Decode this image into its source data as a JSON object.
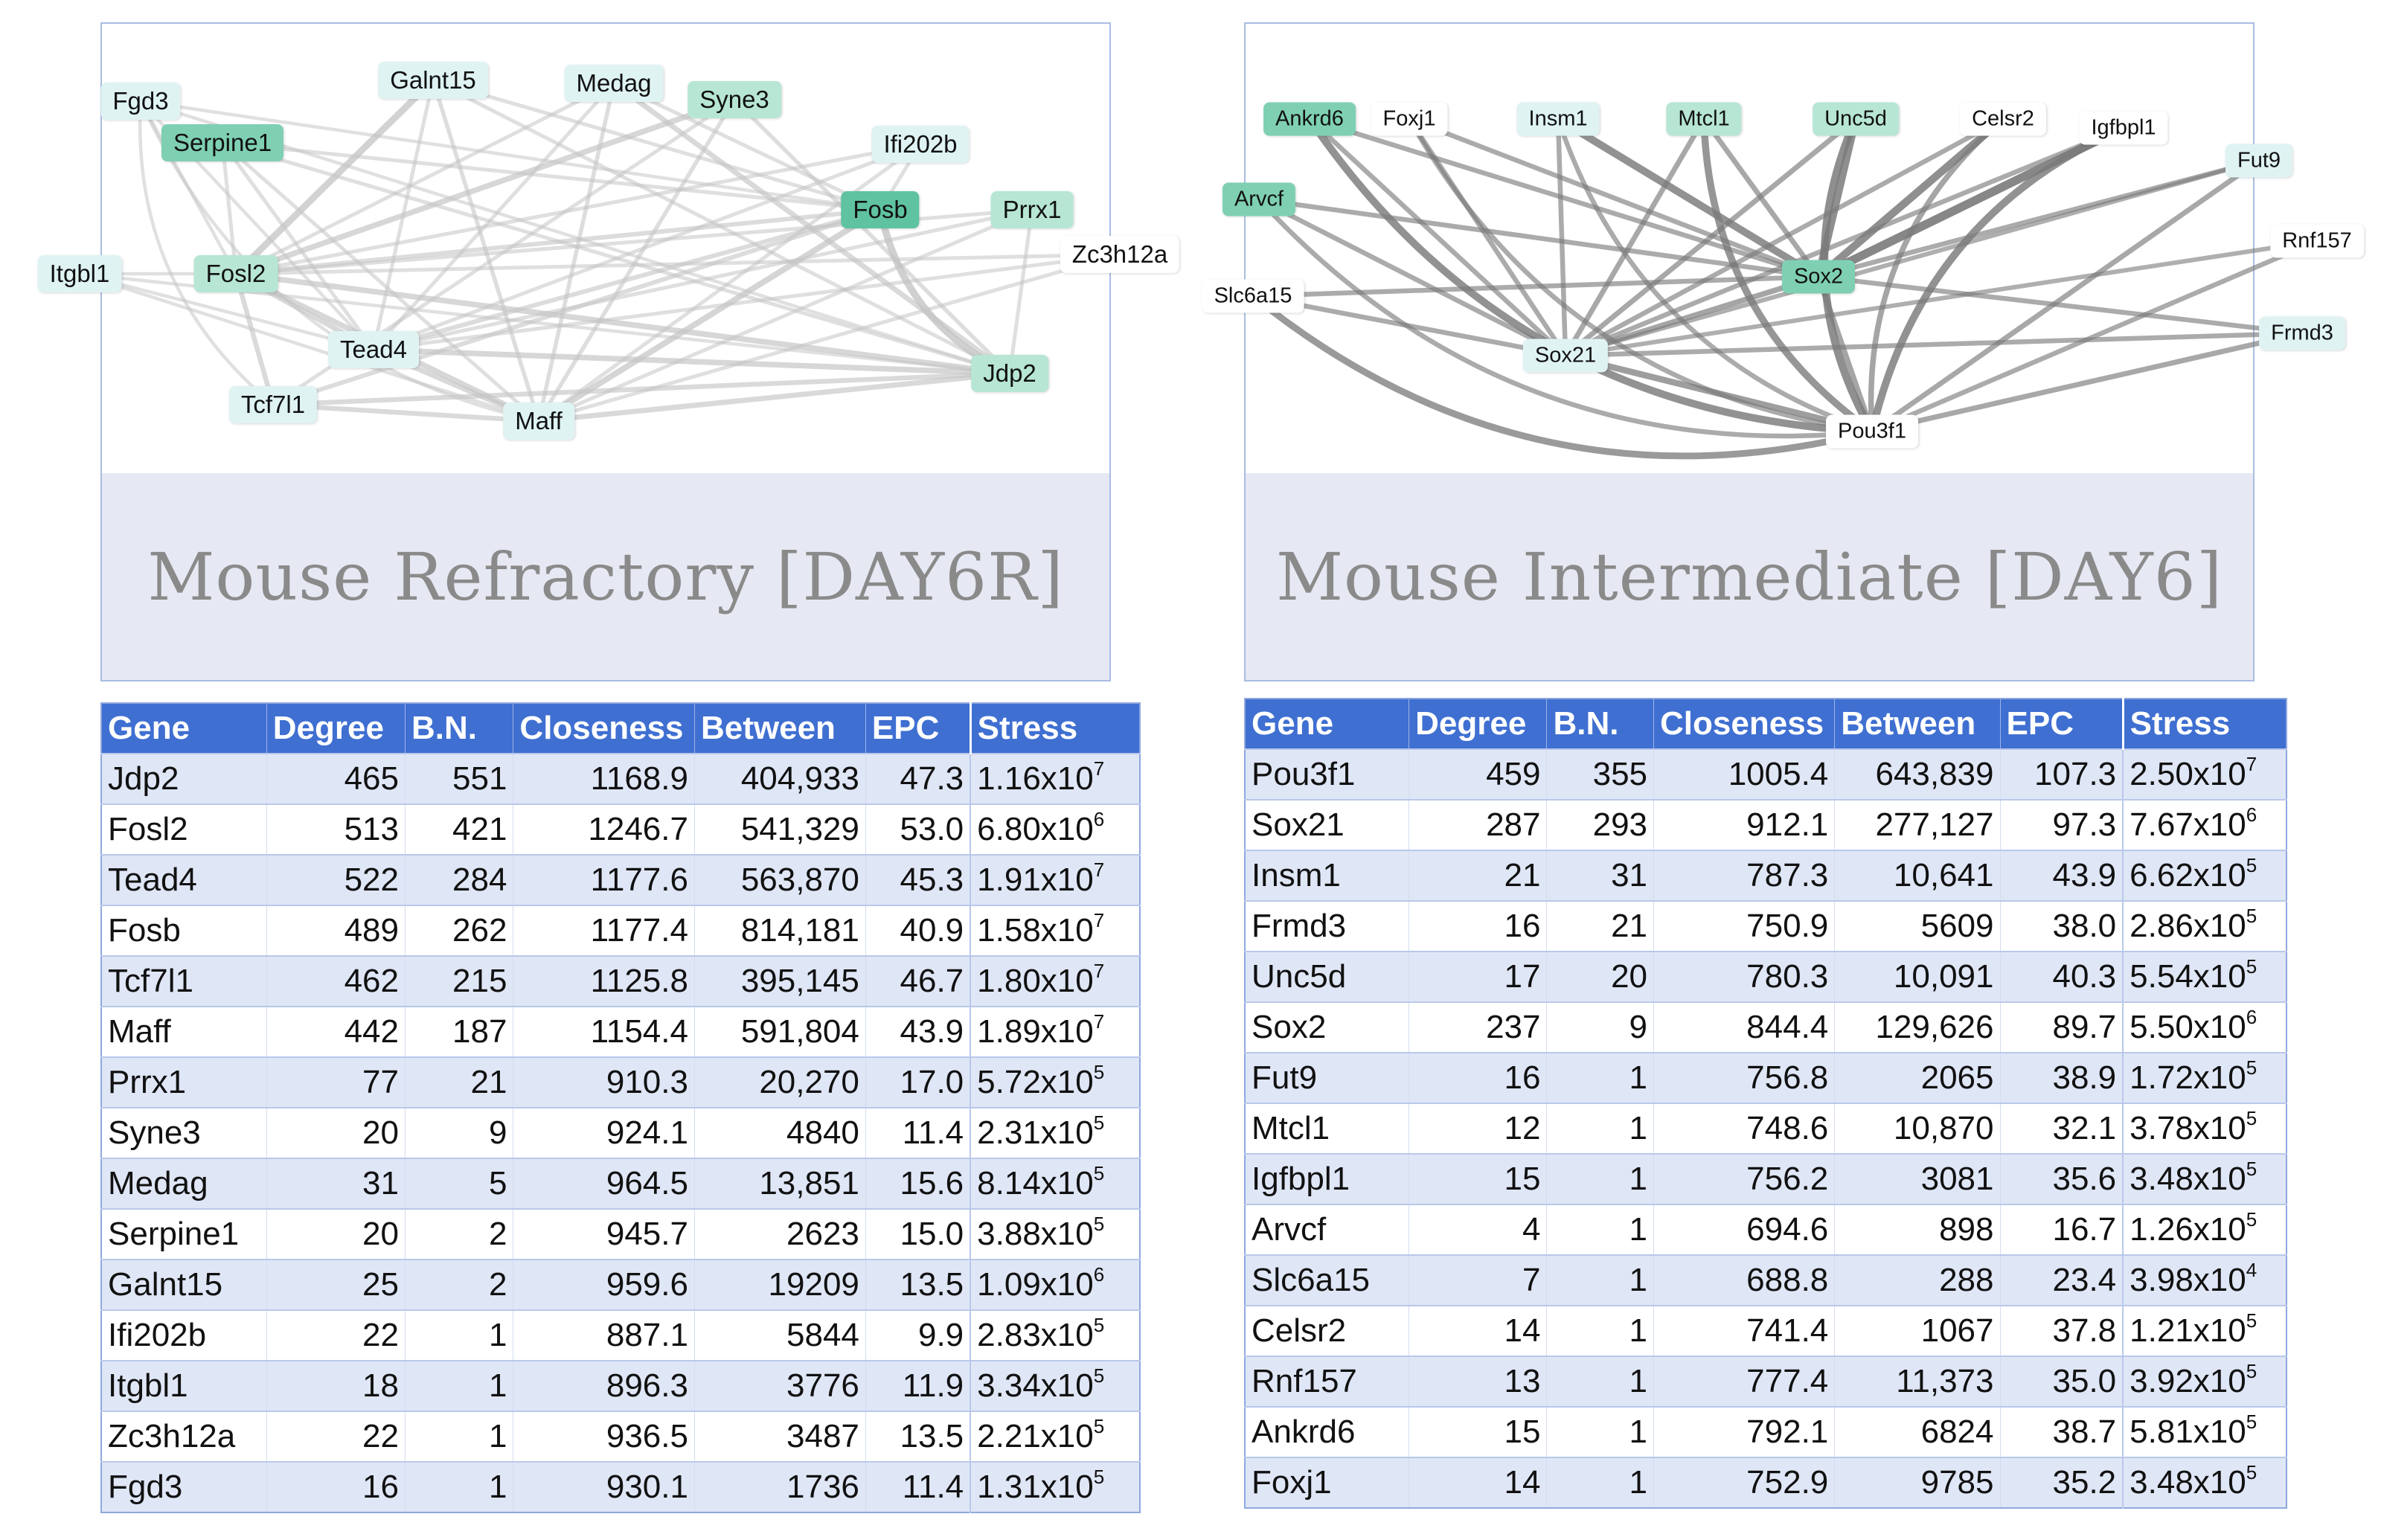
{
  "panels": [
    {
      "id": "left",
      "caption": "Mouse Refractory [DAY6R]",
      "nodes": [
        {
          "id": "Fgd3",
          "label": "Fgd3",
          "shade": "light"
        },
        {
          "id": "Serpine1",
          "label": "Serpine1",
          "shade": "mid"
        },
        {
          "id": "Galnt15",
          "label": "Galnt15",
          "shade": "light"
        },
        {
          "id": "Medag",
          "label": "Medag",
          "shade": "light"
        },
        {
          "id": "Syne3",
          "label": "Syne3",
          "shade": "pale"
        },
        {
          "id": "Ifi202b",
          "label": "Ifi202b",
          "shade": "light"
        },
        {
          "id": "Fosb",
          "label": "Fosb",
          "shade": "dark"
        },
        {
          "id": "Prrx1",
          "label": "Prrx1",
          "shade": "pale"
        },
        {
          "id": "Zc3h12a",
          "label": "Zc3h12a",
          "shade": "none"
        },
        {
          "id": "Itgbl1",
          "label": "Itgbl1",
          "shade": "light"
        },
        {
          "id": "Fosl2",
          "label": "Fosl2",
          "shade": "pale"
        },
        {
          "id": "Tead4",
          "label": "Tead4",
          "shade": "light"
        },
        {
          "id": "Jdp2",
          "label": "Jdp2",
          "shade": "pale"
        },
        {
          "id": "Tcf7l1",
          "label": "Tcf7l1",
          "shade": "light"
        },
        {
          "id": "Maff",
          "label": "Maff",
          "shade": "light"
        }
      ],
      "edges": [
        [
          "Fgd3",
          "Tcf7l1",
          0.3,
          "curve"
        ],
        [
          "Fgd3",
          "Maff",
          0.3,
          "curve"
        ],
        [
          "Fgd3",
          "Fosl2",
          0.3
        ],
        [
          "Fgd3",
          "Tead4",
          0.3
        ],
        [
          "Fgd3",
          "Fosb",
          0.3
        ],
        [
          "Fgd3",
          "Jdp2",
          0.3
        ],
        [
          "Serpine1",
          "Fosl2",
          0.35
        ],
        [
          "Serpine1",
          "Tead4",
          0.35
        ],
        [
          "Serpine1",
          "Maff",
          0.35
        ],
        [
          "Serpine1",
          "Jdp2",
          0.35
        ],
        [
          "Serpine1",
          "Fosb",
          0.35
        ],
        [
          "Galnt15",
          "Fosl2",
          0.75
        ],
        [
          "Galnt15",
          "Tead4",
          0.35
        ],
        [
          "Galnt15",
          "Maff",
          0.4
        ],
        [
          "Galnt15",
          "Jdp2",
          0.35
        ],
        [
          "Galnt15",
          "Fosb",
          0.35
        ],
        [
          "Medag",
          "Fosl2",
          0.35
        ],
        [
          "Medag",
          "Maff",
          0.4
        ],
        [
          "Medag",
          "Jdp2",
          0.55
        ],
        [
          "Medag",
          "Fosb",
          0.35
        ],
        [
          "Medag",
          "Tead4",
          0.35
        ],
        [
          "Syne3",
          "Fosl2",
          0.6
        ],
        [
          "Syne3",
          "Maff",
          0.4
        ],
        [
          "Syne3",
          "Jdp2",
          0.4
        ],
        [
          "Syne3",
          "Tcf7l1",
          0.35
        ],
        [
          "Ifi202b",
          "Fosb",
          0.35
        ],
        [
          "Ifi202b",
          "Fosl2",
          0.35
        ],
        [
          "Ifi202b",
          "Maff",
          0.35
        ],
        [
          "Ifi202b",
          "Tead4",
          0.35
        ],
        [
          "Fosb",
          "Fosl2",
          0.45
        ],
        [
          "Fosb",
          "Maff",
          0.65
        ],
        [
          "Fosb",
          "Tead4",
          0.45
        ],
        [
          "Fosb",
          "Jdp2",
          0.8,
          "curve"
        ],
        [
          "Fosb",
          "Tcf7l1",
          0.45
        ],
        [
          "Prrx1",
          "Fosl2",
          0.35
        ],
        [
          "Prrx1",
          "Maff",
          0.35
        ],
        [
          "Prrx1",
          "Jdp2",
          0.35
        ],
        [
          "Prrx1",
          "Tead4",
          0.35
        ],
        [
          "Zc3h12a",
          "Fosl2",
          0.35
        ],
        [
          "Zc3h12a",
          "Maff",
          0.35
        ],
        [
          "Zc3h12a",
          "Tead4",
          0.35
        ],
        [
          "Itgbl1",
          "Fosl2",
          0.3
        ],
        [
          "Itgbl1",
          "Maff",
          0.3
        ],
        [
          "Itgbl1",
          "Tead4",
          0.3
        ],
        [
          "Itgbl1",
          "Jdp2",
          0.3
        ],
        [
          "Fosl2",
          "Jdp2",
          0.6
        ],
        [
          "Fosl2",
          "Maff",
          0.6
        ],
        [
          "Fosl2",
          "Tead4",
          0.55
        ],
        [
          "Fosl2",
          "Tcf7l1",
          0.5
        ],
        [
          "Tead4",
          "Jdp2",
          0.6
        ],
        [
          "Tead4",
          "Maff",
          0.55
        ],
        [
          "Tcf7l1",
          "Maff",
          0.5
        ],
        [
          "Tcf7l1",
          "Jdp2",
          0.5
        ],
        [
          "Maff",
          "Jdp2",
          0.55
        ]
      ]
    },
    {
      "id": "right",
      "caption": "Mouse Intermediate [DAY6]",
      "nodes": [
        {
          "id": "Ankrd6",
          "label": "Ankrd6",
          "shade": "mid"
        },
        {
          "id": "Foxj1",
          "label": "Foxj1",
          "shade": "none"
        },
        {
          "id": "Insm1",
          "label": "Insm1",
          "shade": "light"
        },
        {
          "id": "Mtcl1",
          "label": "Mtcl1",
          "shade": "pale"
        },
        {
          "id": "Unc5d",
          "label": "Unc5d",
          "shade": "pale"
        },
        {
          "id": "Celsr2",
          "label": "Celsr2",
          "shade": "none"
        },
        {
          "id": "Igfbpl1",
          "label": "Igfbpl1",
          "shade": "none"
        },
        {
          "id": "Fut9",
          "label": "Fut9",
          "shade": "light"
        },
        {
          "id": "Arvcf",
          "label": "Arvcf",
          "shade": "mid"
        },
        {
          "id": "Rnf157",
          "label": "Rnf157",
          "shade": "none"
        },
        {
          "id": "Slc6a15",
          "label": "Slc6a15",
          "shade": "none"
        },
        {
          "id": "Sox2",
          "label": "Sox2",
          "shade": "mid"
        },
        {
          "id": "Frmd3",
          "label": "Frmd3",
          "shade": "light"
        },
        {
          "id": "Sox21",
          "label": "Sox21",
          "shade": "light"
        },
        {
          "id": "Pou3f1",
          "label": "Pou3f1",
          "shade": "none"
        }
      ],
      "edges": [
        [
          "Ankrd6",
          "Pou3f1",
          0.85,
          "curve"
        ],
        [
          "Ankrd6",
          "Sox21",
          0.5
        ],
        [
          "Ankrd6",
          "Sox2",
          0.5
        ],
        [
          "Foxj1",
          "Pou3f1",
          0.5,
          "curve"
        ],
        [
          "Foxj1",
          "Sox21",
          0.5
        ],
        [
          "Foxj1",
          "Sox2",
          0.5
        ],
        [
          "Insm1",
          "Sox2",
          0.85
        ],
        [
          "Insm1",
          "Pou3f1",
          0.5,
          "curve"
        ],
        [
          "Insm1",
          "Sox21",
          0.5
        ],
        [
          "Mtcl1",
          "Sox2",
          0.55
        ],
        [
          "Mtcl1",
          "Pou3f1",
          0.8,
          "curve"
        ],
        [
          "Mtcl1",
          "Sox21",
          0.55
        ],
        [
          "Unc5d",
          "Sox2",
          0.9
        ],
        [
          "Unc5d",
          "Pou3f1",
          0.9,
          "curve"
        ],
        [
          "Unc5d",
          "Sox21",
          0.55
        ],
        [
          "Celsr2",
          "Sox2",
          0.9
        ],
        [
          "Celsr2",
          "Pou3f1",
          0.6,
          "curve"
        ],
        [
          "Celsr2",
          "Sox21",
          0.5
        ],
        [
          "Igfbpl1",
          "Sox2",
          1.0
        ],
        [
          "Igfbpl1",
          "Pou3f1",
          0.85,
          "curve"
        ],
        [
          "Igfbpl1",
          "Sox21",
          0.5
        ],
        [
          "Fut9",
          "Pou3f1",
          0.55
        ],
        [
          "Fut9",
          "Sox2",
          0.5
        ],
        [
          "Fut9",
          "Sox21",
          0.45
        ],
        [
          "Arvcf",
          "Sox2",
          0.5
        ],
        [
          "Arvcf",
          "Sox21",
          0.5
        ],
        [
          "Arvcf",
          "Pou3f1",
          0.5,
          "curve"
        ],
        [
          "Rnf157",
          "Pou3f1",
          0.5
        ],
        [
          "Rnf157",
          "Sox21",
          0.45
        ],
        [
          "Slc6a15",
          "Sox2",
          0.5
        ],
        [
          "Slc6a15",
          "Sox21",
          0.5
        ],
        [
          "Slc6a15",
          "Pou3f1",
          0.75,
          "curve"
        ],
        [
          "Frmd3",
          "Pou3f1",
          0.55
        ],
        [
          "Frmd3",
          "Sox21",
          0.5
        ],
        [
          "Frmd3",
          "Sox2",
          0.5
        ],
        [
          "Sox21",
          "Pou3f1",
          0.7
        ],
        [
          "Sox2",
          "Pou3f1",
          0.6
        ],
        [
          "Sox2",
          "Sox21",
          0.6
        ]
      ]
    }
  ],
  "tables": [
    {
      "id": "refractory",
      "headers": [
        "Gene",
        "Degree",
        "B.N.",
        "Closeness",
        "Between",
        "EPC",
        "Stress"
      ],
      "rows": [
        {
          "gene": "Jdp2",
          "degree": "465",
          "bn": "551",
          "closeness": "1168.9",
          "between": "404,933",
          "epc": "47.3",
          "stress_base": "1.16x10",
          "stress_exp": "7"
        },
        {
          "gene": "Fosl2",
          "degree": "513",
          "bn": "421",
          "closeness": "1246.7",
          "between": "541,329",
          "epc": "53.0",
          "stress_base": "6.80x10",
          "stress_exp": "6"
        },
        {
          "gene": "Tead4",
          "degree": "522",
          "bn": "284",
          "closeness": "1177.6",
          "between": "563,870",
          "epc": "45.3",
          "stress_base": "1.91x10",
          "stress_exp": "7"
        },
        {
          "gene": "Fosb",
          "degree": "489",
          "bn": "262",
          "closeness": "1177.4",
          "between": "814,181",
          "epc": "40.9",
          "stress_base": "1.58x10",
          "stress_exp": "7"
        },
        {
          "gene": "Tcf7l1",
          "degree": "462",
          "bn": "215",
          "closeness": "1125.8",
          "between": "395,145",
          "epc": "46.7",
          "stress_base": "1.80x10",
          "stress_exp": "7"
        },
        {
          "gene": "Maff",
          "degree": "442",
          "bn": "187",
          "closeness": "1154.4",
          "between": "591,804",
          "epc": "43.9",
          "stress_base": "1.89x10",
          "stress_exp": "7"
        },
        {
          "gene": "Prrx1",
          "degree": "77",
          "bn": "21",
          "closeness": "910.3",
          "between": "20,270",
          "epc": "17.0",
          "stress_base": "5.72x10",
          "stress_exp": "5"
        },
        {
          "gene": "Syne3",
          "degree": "20",
          "bn": "9",
          "closeness": "924.1",
          "between": "4840",
          "epc": "11.4",
          "stress_base": "2.31x10",
          "stress_exp": "5"
        },
        {
          "gene": "Medag",
          "degree": "31",
          "bn": "5",
          "closeness": "964.5",
          "between": "13,851",
          "epc": "15.6",
          "stress_base": "8.14x10",
          "stress_exp": "5"
        },
        {
          "gene": "Serpine1",
          "degree": "20",
          "bn": "2",
          "closeness": "945.7",
          "between": "2623",
          "epc": "15.0",
          "stress_base": "3.88x10",
          "stress_exp": "5"
        },
        {
          "gene": "Galnt15",
          "degree": "25",
          "bn": "2",
          "closeness": "959.6",
          "between": "19209",
          "epc": "13.5",
          "stress_base": "1.09x10",
          "stress_exp": "6"
        },
        {
          "gene": "Ifi202b",
          "degree": "22",
          "bn": "1",
          "closeness": "887.1",
          "between": "5844",
          "epc": "9.9",
          "stress_base": "2.83x10",
          "stress_exp": "5"
        },
        {
          "gene": "Itgbl1",
          "degree": "18",
          "bn": "1",
          "closeness": "896.3",
          "between": "3776",
          "epc": "11.9",
          "stress_base": "3.34x10",
          "stress_exp": "5"
        },
        {
          "gene": "Zc3h12a",
          "degree": "22",
          "bn": "1",
          "closeness": "936.5",
          "between": "3487",
          "epc": "13.5",
          "stress_base": "2.21x10",
          "stress_exp": "5"
        },
        {
          "gene": "Fgd3",
          "degree": "16",
          "bn": "1",
          "closeness": "930.1",
          "between": "1736",
          "epc": "11.4",
          "stress_base": "1.31x10",
          "stress_exp": "5"
        }
      ]
    },
    {
      "id": "intermediate",
      "headers": [
        "Gene",
        "Degree",
        "B.N.",
        "Closeness",
        "Between",
        "EPC",
        "Stress"
      ],
      "rows": [
        {
          "gene": "Pou3f1",
          "degree": "459",
          "bn": "355",
          "closeness": "1005.4",
          "between": "643,839",
          "epc": "107.3",
          "stress_base": "2.50x10",
          "stress_exp": "7"
        },
        {
          "gene": "Sox21",
          "degree": "287",
          "bn": "293",
          "closeness": "912.1",
          "between": "277,127",
          "epc": "97.3",
          "stress_base": "7.67x10",
          "stress_exp": "6"
        },
        {
          "gene": "Insm1",
          "degree": "21",
          "bn": "31",
          "closeness": "787.3",
          "between": "10,641",
          "epc": "43.9",
          "stress_base": "6.62x10",
          "stress_exp": "5"
        },
        {
          "gene": "Frmd3",
          "degree": "16",
          "bn": "21",
          "closeness": "750.9",
          "between": "5609",
          "epc": "38.0",
          "stress_base": "2.86x10",
          "stress_exp": "5"
        },
        {
          "gene": "Unc5d",
          "degree": "17",
          "bn": "20",
          "closeness": "780.3",
          "between": "10,091",
          "epc": "40.3",
          "stress_base": "5.54x10",
          "stress_exp": "5"
        },
        {
          "gene": "Sox2",
          "degree": "237",
          "bn": "9",
          "closeness": "844.4",
          "between": "129,626",
          "epc": "89.7",
          "stress_base": "5.50x10",
          "stress_exp": "6"
        },
        {
          "gene": "Fut9",
          "degree": "16",
          "bn": "1",
          "closeness": "756.8",
          "between": "2065",
          "epc": "38.9",
          "stress_base": "1.72x10",
          "stress_exp": "5"
        },
        {
          "gene": "Mtcl1",
          "degree": "12",
          "bn": "1",
          "closeness": "748.6",
          "between": "10,870",
          "epc": "32.1",
          "stress_base": "3.78x10",
          "stress_exp": "5"
        },
        {
          "gene": "Igfbpl1",
          "degree": "15",
          "bn": "1",
          "closeness": "756.2",
          "between": "3081",
          "epc": "35.6",
          "stress_base": "3.48x10",
          "stress_exp": "5"
        },
        {
          "gene": "Arvcf",
          "degree": "4",
          "bn": "1",
          "closeness": "694.6",
          "between": "898",
          "epc": "16.7",
          "stress_base": "1.26x10",
          "stress_exp": "5"
        },
        {
          "gene": "Slc6a15",
          "degree": "7",
          "bn": "1",
          "closeness": "688.8",
          "between": "288",
          "epc": "23.4",
          "stress_base": "3.98x10",
          "stress_exp": "4"
        },
        {
          "gene": "Celsr2",
          "degree": "14",
          "bn": "1",
          "closeness": "741.4",
          "between": "1067",
          "epc": "37.8",
          "stress_base": "1.21x10",
          "stress_exp": "5"
        },
        {
          "gene": "Rnf157",
          "degree": "13",
          "bn": "1",
          "closeness": "777.4",
          "between": "11,373",
          "epc": "35.0",
          "stress_base": "3.92x10",
          "stress_exp": "5"
        },
        {
          "gene": "Ankrd6",
          "degree": "15",
          "bn": "1",
          "closeness": "792.1",
          "between": "6824",
          "epc": "38.7",
          "stress_base": "5.81x10",
          "stress_exp": "5"
        },
        {
          "gene": "Foxj1",
          "degree": "14",
          "bn": "1",
          "closeness": "752.9",
          "between": "9785",
          "epc": "35.2",
          "stress_base": "3.48x10",
          "stress_exp": "5"
        }
      ]
    }
  ],
  "colors": {
    "header_bg": "#3f6fd1",
    "row_alt": "#dfe6f6",
    "node_dark": "#5fc2a0",
    "node_mid": "#7fd0b3",
    "node_pale": "#b7e6d4",
    "node_light": "#dff3f3",
    "edge_left": "#c4c4c4",
    "edge_right": "#7a7a7a"
  }
}
